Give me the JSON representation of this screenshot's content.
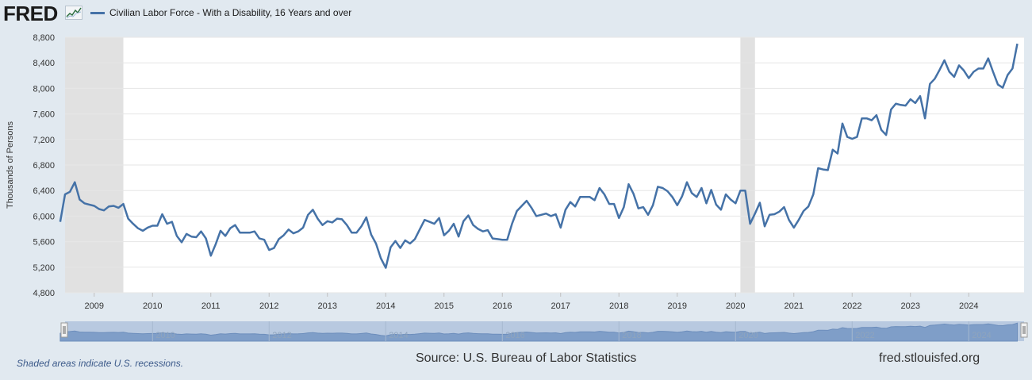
{
  "header": {
    "logo_text": "FRED",
    "series_label": "Civilian Labor Force - With a Disability, 16 Years and over",
    "series_color": "#4572a7"
  },
  "footer": {
    "recession_note": "Shaded areas indicate U.S. recessions.",
    "source": "Source: U.S. Bureau of Labor Statistics",
    "site": "fred.stlouisfed.org"
  },
  "chart_data": {
    "type": "line",
    "title": "",
    "xlabel": "",
    "ylabel": "Thousands of Persons",
    "ylim": [
      4800,
      8800
    ],
    "y_ticks": [
      4800,
      5200,
      5600,
      6000,
      6400,
      6800,
      7200,
      7600,
      8000,
      8400,
      8800
    ],
    "y_tick_labels": [
      "4,800",
      "5,200",
      "5,600",
      "6,000",
      "6,400",
      "6,800",
      "7,200",
      "7,600",
      "8,000",
      "8,400",
      "8,800"
    ],
    "x_tick_labels": [
      "2009",
      "2010",
      "2011",
      "2012",
      "2013",
      "2014",
      "2015",
      "2016",
      "2017",
      "2018",
      "2019",
      "2020",
      "2021",
      "2022",
      "2023",
      "2024"
    ],
    "grid": true,
    "legend": "top-left",
    "recessions": [
      {
        "start": "2008-06",
        "end": "2009-06"
      },
      {
        "start": "2020-02",
        "end": "2020-04"
      }
    ],
    "series": [
      {
        "name": "Civilian Labor Force - With a Disability, 16 Years and over",
        "color": "#4572a7",
        "start": "2008-06",
        "frequency": "monthly",
        "values": [
          5910,
          6340,
          6380,
          6530,
          6260,
          6200,
          6180,
          6160,
          6110,
          6090,
          6150,
          6160,
          6130,
          6190,
          5960,
          5880,
          5810,
          5770,
          5820,
          5850,
          5850,
          6030,
          5880,
          5910,
          5690,
          5590,
          5720,
          5680,
          5670,
          5760,
          5650,
          5380,
          5560,
          5770,
          5690,
          5810,
          5860,
          5740,
          5740,
          5740,
          5760,
          5650,
          5630,
          5470,
          5500,
          5640,
          5700,
          5790,
          5730,
          5760,
          5820,
          6020,
          6100,
          5960,
          5860,
          5920,
          5900,
          5960,
          5950,
          5860,
          5740,
          5740,
          5840,
          5980,
          5710,
          5570,
          5340,
          5190,
          5510,
          5610,
          5500,
          5620,
          5570,
          5640,
          5790,
          5940,
          5910,
          5880,
          5970,
          5700,
          5770,
          5880,
          5680,
          5920,
          6010,
          5860,
          5800,
          5760,
          5780,
          5650,
          5640,
          5630,
          5630,
          5880,
          6080,
          6160,
          6240,
          6130,
          6000,
          6020,
          6040,
          6000,
          6030,
          5820,
          6100,
          6220,
          6150,
          6300,
          6300,
          6300,
          6250,
          6440,
          6340,
          6190,
          6190,
          5970,
          6140,
          6500,
          6350,
          6120,
          6140,
          6020,
          6170,
          6460,
          6440,
          6390,
          6300,
          6170,
          6310,
          6530,
          6360,
          6300,
          6440,
          6200,
          6410,
          6180,
          6100,
          6340,
          6260,
          6200,
          6400,
          6400,
          5880,
          6040,
          6210,
          5840,
          6020,
          6030,
          6070,
          6140,
          5940,
          5820,
          5940,
          6080,
          6150,
          6340,
          6750,
          6730,
          6720,
          7040,
          6980,
          7450,
          7240,
          7210,
          7240,
          7530,
          7530,
          7500,
          7580,
          7350,
          7270,
          7670,
          7760,
          7740,
          7730,
          7830,
          7770,
          7880,
          7530,
          8070,
          8150,
          8290,
          8440,
          8260,
          8180,
          8360,
          8280,
          8160,
          8260,
          8310,
          8310,
          8470,
          8260,
          8060,
          8010,
          8210,
          8310,
          8700
        ]
      }
    ]
  }
}
